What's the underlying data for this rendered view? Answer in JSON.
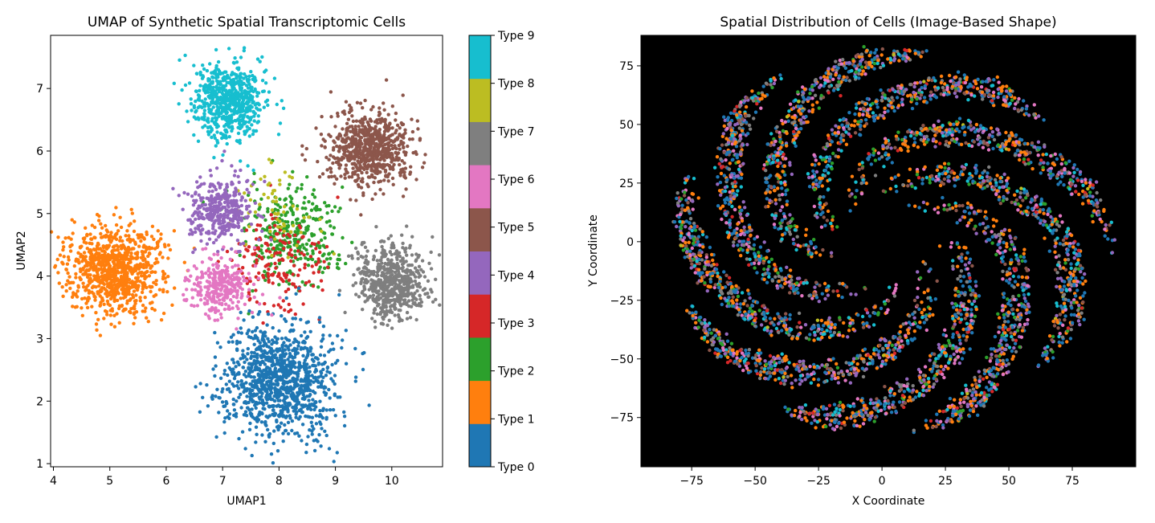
{
  "chart_data": [
    {
      "type": "scatter",
      "title": "UMAP of Synthetic Spatial Transcriptomic Cells",
      "xlabel": "UMAP1",
      "ylabel": "UMAP2",
      "xlim": [
        3.95,
        10.9
      ],
      "ylim": [
        0.95,
        7.85
      ],
      "xticks": [
        4,
        5,
        6,
        7,
        8,
        9,
        10
      ],
      "yticks": [
        1,
        2,
        3,
        4,
        5,
        6,
        7
      ],
      "grid": false,
      "colorbar": {
        "labels": [
          "Type 0",
          "Type 1",
          "Type 2",
          "Type 3",
          "Type 4",
          "Type 5",
          "Type 6",
          "Type 7",
          "Type 8",
          "Type 9"
        ],
        "colors": [
          "#1f77b4",
          "#ff7f0e",
          "#2ca02c",
          "#d62728",
          "#9467bd",
          "#8c564b",
          "#e377c2",
          "#7f7f7f",
          "#bcbd22",
          "#17becf"
        ]
      },
      "clusters": [
        {
          "name": "Type 0",
          "center": [
            8.0,
            2.35
          ],
          "spread": [
            0.48,
            0.46
          ],
          "points": 1100
        },
        {
          "name": "Type 1",
          "center": [
            5.1,
            4.1
          ],
          "spread": [
            0.42,
            0.34
          ],
          "points": 900
        },
        {
          "name": "Type 2",
          "center": [
            8.25,
            4.6
          ],
          "spread": [
            0.4,
            0.4
          ],
          "points": 330
        },
        {
          "name": "Type 3",
          "center": [
            8.0,
            4.2
          ],
          "spread": [
            0.42,
            0.38
          ],
          "points": 170
        },
        {
          "name": "Type 4",
          "center": [
            6.95,
            5.05
          ],
          "spread": [
            0.27,
            0.25
          ],
          "points": 380
        },
        {
          "name": "Type 5",
          "center": [
            9.6,
            6.05
          ],
          "spread": [
            0.38,
            0.3
          ],
          "points": 700
        },
        {
          "name": "Type 6",
          "center": [
            6.95,
            3.8
          ],
          "spread": [
            0.27,
            0.23
          ],
          "points": 300
        },
        {
          "name": "Type 7",
          "center": [
            10.0,
            3.9
          ],
          "spread": [
            0.3,
            0.3
          ],
          "points": 620
        },
        {
          "name": "Type 8",
          "center": [
            7.9,
            5.1
          ],
          "spread": [
            0.4,
            0.4
          ],
          "points": 60
        },
        {
          "name": "Type 9",
          "center": [
            7.1,
            6.8
          ],
          "spread": [
            0.32,
            0.3
          ],
          "points": 650
        }
      ]
    },
    {
      "type": "scatter",
      "title": "Spatial Distribution of Cells (Image-Based Shape)",
      "xlabel": "X Coordinate",
      "ylabel": "Y Coordinate",
      "xlim": [
        -95,
        100
      ],
      "ylim": [
        -96,
        88
      ],
      "xticks": [
        -75,
        -50,
        -25,
        0,
        25,
        50,
        75
      ],
      "yticks": [
        -75,
        -50,
        -25,
        0,
        25,
        50,
        75
      ],
      "background": "#000000",
      "grid": false,
      "shape": {
        "outer_radius": 82,
        "inner_radius": 17,
        "arms": 18,
        "spiral_twist": 0.85,
        "points": 4200
      }
    }
  ]
}
